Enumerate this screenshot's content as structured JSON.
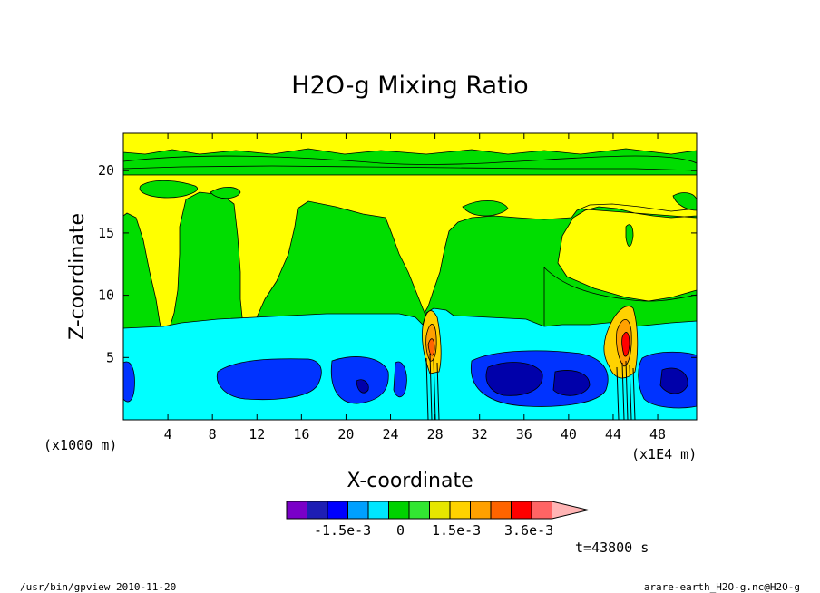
{
  "chart_data": {
    "type": "heatmap",
    "title": "H2O-g Mixing Ratio",
    "xlabel": "X-coordinate",
    "ylabel": "Z-coordinate",
    "x_unit": "(x1000 m)",
    "x_scale_note": "(x1E4 m)",
    "xlim": [
      0,
      51.5
    ],
    "ylim": [
      0,
      23
    ],
    "x_ticks": [
      "4",
      "8",
      "12",
      "16",
      "20",
      "24",
      "28",
      "32",
      "36",
      "40",
      "44",
      "48"
    ],
    "y_ticks": [
      "5",
      "10",
      "15",
      "20"
    ],
    "colorbar": {
      "colors": [
        "#7a00c8",
        "#1e1eb4",
        "#0000ff",
        "#00a0ff",
        "#00e6ff",
        "#00d200",
        "#32e632",
        "#e6e600",
        "#ffd200",
        "#ffa000",
        "#ff6400",
        "#ff0000",
        "#ff6464",
        "#ffb4b4"
      ],
      "tick_labels": [
        "-1.5e-3",
        "0",
        "1.5e-3",
        "3.6e-3"
      ]
    },
    "time_label": "t=43800 s",
    "footer_left": "/usr/bin/gpview  2010-11-20",
    "footer_right": "arare-earth_H2O-g.nc@H2O-g",
    "regions": [
      {
        "level": "yellow",
        "color": "#ffff00",
        "desc": "upper layer"
      },
      {
        "level": "green",
        "color": "#00dd00"
      },
      {
        "level": "cyan",
        "color": "#00ffff"
      },
      {
        "level": "blue",
        "color": "#0033ff"
      },
      {
        "level": "darkblue",
        "color": "#0000aa"
      }
    ]
  }
}
